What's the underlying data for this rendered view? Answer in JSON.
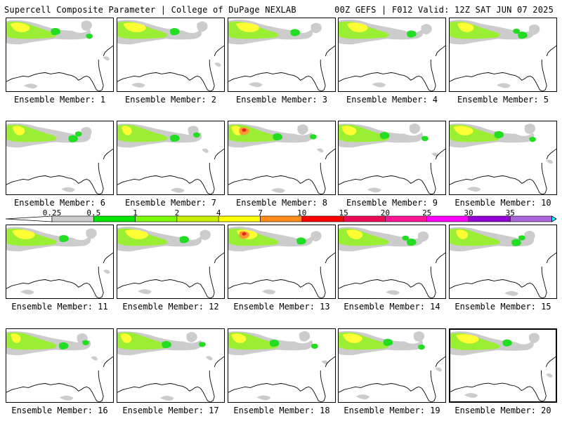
{
  "header": {
    "left": "Supercell Composite Parameter | College of DuPage NEXLAB",
    "right": "00Z GEFS | F012 Valid: 12Z SAT JUN 07 2025"
  },
  "panel_label_prefix": "Ensemble Member: ",
  "members": [
    1,
    2,
    3,
    4,
    5,
    6,
    7,
    8,
    9,
    10,
    11,
    12,
    13,
    14,
    15,
    16,
    17,
    18,
    19,
    20
  ],
  "selected_member": 20,
  "colorbar": {
    "labels": [
      "0.25",
      "0.5",
      "1",
      "2",
      "4",
      "7",
      "10",
      "15",
      "20",
      "25",
      "30",
      "35"
    ],
    "colors": [
      "#cccccc",
      "#00e600",
      "#7cfc00",
      "#c8f000",
      "#ffff00",
      "#ff8c1a",
      "#ff0000",
      "#ee0a55",
      "#ff1493",
      "#ff00ff",
      "#9400d3",
      "#aa66dd",
      "#00ffff"
    ]
  },
  "colors": {
    "grey": "#cccccc",
    "green": "#22dd22",
    "lime": "#9aee33",
    "yellow": "#ffff33",
    "orange": "#ff9933",
    "red": "#ee2222"
  }
}
